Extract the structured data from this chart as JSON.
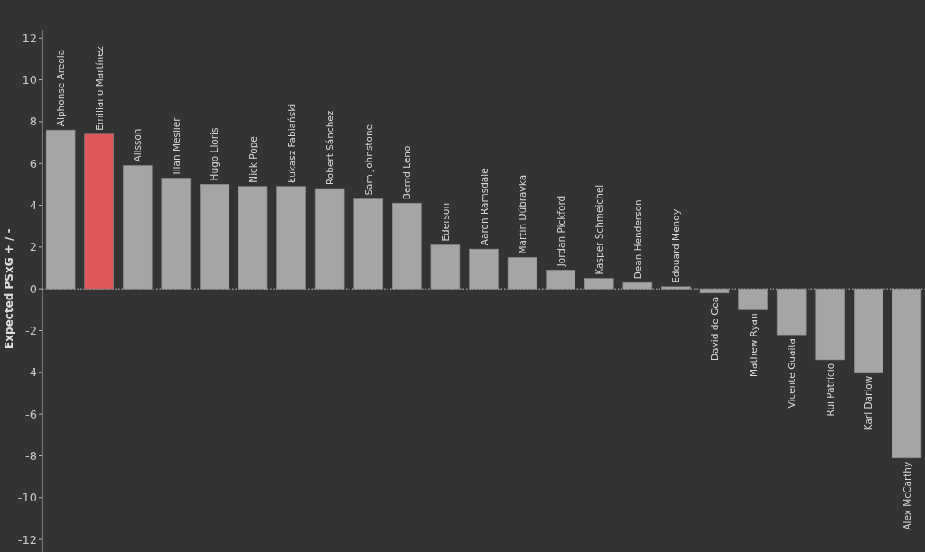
{
  "chart_data": {
    "type": "bar",
    "ylabel": "Expected PSxG + / -",
    "categories": [
      "Alphonse Areola",
      "Emiliano Martínez",
      "Alisson",
      "Illan Meslier",
      "Hugo Lloris",
      "Nick Pope",
      "Łukasz Fabiański",
      "Robert Sánchez",
      "Sam Johnstone",
      "Bernd Leno",
      "Ederson",
      "Aaron Ramsdale",
      "Martin Dúbravka",
      "Jordan Pickford",
      "Kasper Schmeichel",
      "Dean Henderson",
      "Edouard Mendy",
      "David de Gea",
      "Mathew Ryan",
      "Vicente Guaita",
      "Rui Patrício",
      "Karl Darlow",
      "Alex McCarthy"
    ],
    "values": [
      7.6,
      7.4,
      5.9,
      5.3,
      5.0,
      4.9,
      4.9,
      4.8,
      4.3,
      4.1,
      2.1,
      1.9,
      1.5,
      0.9,
      0.5,
      0.3,
      0.1,
      -0.2,
      -1.0,
      -2.2,
      -3.4,
      -4.0,
      -8.1
    ],
    "colors": [
      "#a5a5a5",
      "#e0575a",
      "#a5a5a5",
      "#a5a5a5",
      "#a5a5a5",
      "#a5a5a5",
      "#a5a5a5",
      "#a5a5a5",
      "#a5a5a5",
      "#a5a5a5",
      "#a5a5a5",
      "#a5a5a5",
      "#a5a5a5",
      "#a5a5a5",
      "#a5a5a5",
      "#a5a5a5",
      "#a5a5a5",
      "#a5a5a5",
      "#a5a5a5",
      "#a5a5a5",
      "#a5a5a5",
      "#a5a5a5",
      "#a5a5a5"
    ],
    "ylim": [
      -12.6,
      12.4
    ],
    "yticks": [
      -12,
      -10,
      -8,
      -6,
      -4,
      -2,
      0,
      2,
      4,
      6,
      8,
      10,
      12
    ],
    "ref_lines": [
      {
        "axis": "y",
        "value": 0,
        "line_style": "dotted",
        "color": "#cccccc"
      }
    ],
    "grid": false
  }
}
